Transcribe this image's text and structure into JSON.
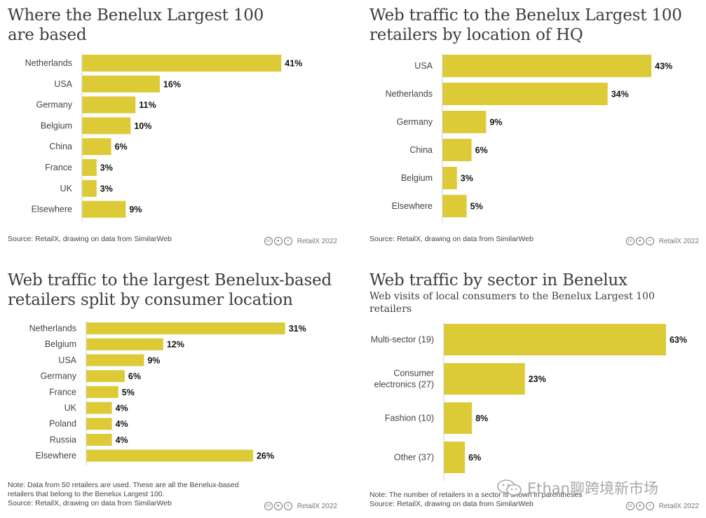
{
  "accent_color": "#dccb37",
  "panels": [
    {
      "title": "Where the Benelux Largest 100 are based",
      "subtitle": "",
      "footnotes": [
        "Source: RetailX, drawing on data from SimilarWeb"
      ],
      "license": "RetailX 2022",
      "license_icons": [
        "cc-icon",
        "person-icon",
        "equals-icon"
      ]
    },
    {
      "title": "Web traffic to the Benelux Largest 100 retailers by location of HQ",
      "subtitle": "",
      "footnotes": [
        "Source: RetailX, drawing on data from SimilarWeb"
      ],
      "license": "RetailX 2022",
      "license_icons": [
        "cc-icon",
        "person-icon",
        "equals-icon"
      ]
    },
    {
      "title": "Web traffic to the largest Benelux-based retailers split by consumer location",
      "subtitle": "",
      "footnotes": [
        "Note: Data from 50 retailers are used. These are all the Benelux-based",
        "retailers that belong to the Benelux Largest 100.",
        "Source: RetailX, drawing on data from SimilarWeb"
      ],
      "license": "RetailX 2022",
      "license_icons": [
        "cc-icon",
        "person-icon",
        "equals-icon"
      ]
    },
    {
      "title": "Web traffic by sector in Benelux",
      "subtitle": "Web visits of local consumers to the Benelux Largest 100 retailers",
      "footnotes": [
        "Note: The number of retailers in a sector is shown in parentheses",
        "Source: RetailX, drawing on data from SimilarWeb"
      ],
      "license": "RetailX 2022",
      "license_icons": [
        "cc-icon",
        "person-icon",
        "equals-icon"
      ]
    }
  ],
  "chart_data": [
    {
      "type": "bar",
      "orientation": "horizontal",
      "categories": [
        "Netherlands",
        "USA",
        "Germany",
        "Belgium",
        "China",
        "France",
        "UK",
        "Elsewhere"
      ],
      "values": [
        41,
        16,
        11,
        10,
        6,
        3,
        3,
        9
      ],
      "value_labels": [
        "41%",
        "16%",
        "11%",
        "10%",
        "6%",
        "3%",
        "3%",
        "9%"
      ],
      "unit": "%",
      "xlim": [
        0,
        45
      ]
    },
    {
      "type": "bar",
      "orientation": "horizontal",
      "categories": [
        "USA",
        "Netherlands",
        "Germany",
        "China",
        "Belgium",
        "Elsewhere"
      ],
      "values": [
        43,
        34,
        9,
        6,
        3,
        5
      ],
      "value_labels": [
        "43%",
        "34%",
        "9%",
        "6%",
        "3%",
        "5%"
      ],
      "unit": "%",
      "xlim": [
        0,
        45
      ]
    },
    {
      "type": "bar",
      "orientation": "horizontal",
      "categories": [
        "Netherlands",
        "Belgium",
        "USA",
        "Germany",
        "France",
        "UK",
        "Poland",
        "Russia",
        "Elsewhere"
      ],
      "values": [
        31,
        12,
        9,
        6,
        5,
        4,
        4,
        4,
        26
      ],
      "value_labels": [
        "31%",
        "12%",
        "9%",
        "6%",
        "5%",
        "4%",
        "4%",
        "4%",
        "26%"
      ],
      "unit": "%",
      "xlim": [
        0,
        33
      ]
    },
    {
      "type": "bar",
      "orientation": "horizontal",
      "categories": [
        [
          "Multi-sector (19)"
        ],
        [
          "Consumer",
          "electronics (27)"
        ],
        [
          "Fashion (10)"
        ],
        [
          "Other (37)"
        ]
      ],
      "values": [
        63,
        23,
        8,
        6
      ],
      "value_labels": [
        "63%",
        "23%",
        "8%",
        "6%"
      ],
      "unit": "%",
      "xlim": [
        0,
        65
      ]
    }
  ],
  "watermark": {
    "icon": "wechat-icon",
    "text": "Ethan聊跨境新市场"
  }
}
